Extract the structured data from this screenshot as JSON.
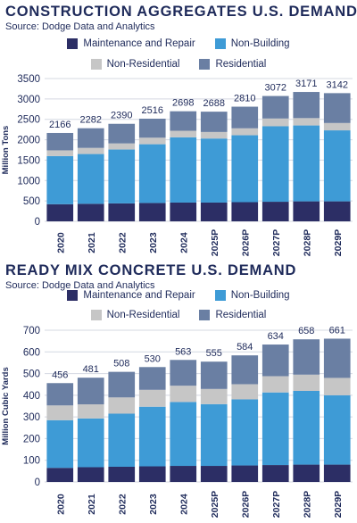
{
  "colors": {
    "maintenance": "#2c2e65",
    "non_building": "#3e9bd6",
    "non_residential": "#c6c6c6",
    "residential": "#6a7fa3",
    "text": "#1e2a5a",
    "grid": "#d4d8e2"
  },
  "chart_data": [
    {
      "type": "bar",
      "stacked": true,
      "title": "CONSTRUCTION AGGREGATES U.S. DEMAND",
      "subtitle": "Source: Dodge Data and Analytics",
      "ylabel": "Million Tons",
      "ylim": [
        0,
        3500
      ],
      "yticks": [
        0,
        500,
        1000,
        1500,
        2000,
        2500,
        3000,
        3500
      ],
      "grid": true,
      "categories": [
        "2020",
        "2021",
        "2022",
        "2023",
        "2024",
        "2025P",
        "2026P",
        "2027P",
        "2028P",
        "2029P"
      ],
      "totals": [
        "2166",
        "2282",
        "2390",
        "2516",
        "2698",
        "2688",
        "2810",
        "3072",
        "3171",
        "3142"
      ],
      "series": [
        {
          "name": "Maintenance and Repair",
          "key": "maintenance",
          "values": [
            420,
            430,
            440,
            450,
            460,
            460,
            470,
            480,
            490,
            490
          ]
        },
        {
          "name": "Non-Building",
          "key": "non_building",
          "values": [
            1180,
            1220,
            1320,
            1440,
            1600,
            1570,
            1640,
            1850,
            1860,
            1740
          ]
        },
        {
          "name": "Non-Residential",
          "key": "non_residential",
          "values": [
            140,
            150,
            150,
            160,
            160,
            160,
            170,
            190,
            180,
            180
          ]
        },
        {
          "name": "Residential",
          "key": "residential",
          "values": [
            426,
            482,
            480,
            466,
            478,
            498,
            530,
            552,
            641,
            732
          ]
        }
      ]
    },
    {
      "type": "bar",
      "stacked": true,
      "title": "READY MIX CONCRETE U.S. DEMAND",
      "subtitle": "Source: Dodge Data and Analytics",
      "ylabel": "Million Cubic Yards",
      "ylim": [
        0,
        700
      ],
      "yticks": [
        0,
        100,
        200,
        300,
        400,
        500,
        600,
        700
      ],
      "grid": true,
      "categories": [
        "2020",
        "2021",
        "2022",
        "2023",
        "2024",
        "2025P",
        "2026P",
        "2027P",
        "2028P",
        "2029P"
      ],
      "totals": [
        "456",
        "481",
        "508",
        "530",
        "563",
        "555",
        "584",
        "634",
        "658",
        "661"
      ],
      "series": [
        {
          "name": "Maintenance and Repair",
          "key": "maintenance",
          "values": [
            65,
            68,
            70,
            72,
            74,
            74,
            76,
            78,
            80,
            80
          ]
        },
        {
          "name": "Non-Building",
          "key": "non_building",
          "values": [
            220,
            225,
            245,
            275,
            295,
            285,
            305,
            335,
            340,
            320
          ]
        },
        {
          "name": "Non-Residential",
          "key": "non_residential",
          "values": [
            68,
            65,
            75,
            78,
            75,
            70,
            70,
            75,
            75,
            80
          ]
        },
        {
          "name": "Residential",
          "key": "residential",
          "values": [
            103,
            123,
            118,
            105,
            119,
            126,
            133,
            146,
            163,
            181
          ]
        }
      ]
    }
  ]
}
